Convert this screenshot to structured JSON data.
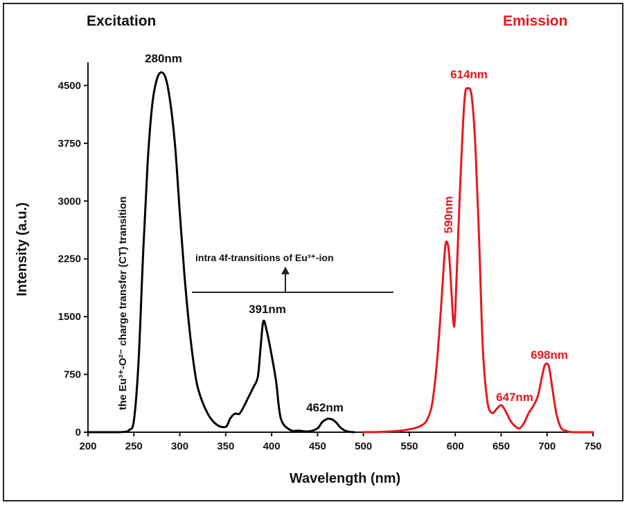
{
  "chart_data": {
    "type": "line",
    "titles": {
      "left": "Excitation",
      "right": "Emission"
    },
    "xlabel": "Wavelength (nm)",
    "ylabel": "Intensity (a.u.)",
    "xlim": [
      200,
      750
    ],
    "ylim": [
      0,
      4800
    ],
    "xticks": [
      200,
      250,
      300,
      350,
      400,
      450,
      500,
      550,
      600,
      650,
      700,
      750
    ],
    "yticks": [
      0,
      750,
      1500,
      2250,
      3000,
      3750,
      4500
    ],
    "grid": false,
    "colors": {
      "excitation": "#000000",
      "emission": "#e8171d"
    },
    "series": [
      {
        "id": "excitation",
        "x": [
          200,
          230,
          240,
          245,
          250,
          255,
          260,
          265,
          270,
          275,
          280,
          285,
          290,
          295,
          300,
          305,
          310,
          315,
          320,
          330,
          340,
          350,
          355,
          360,
          365,
          370,
          375,
          380,
          385,
          388,
          391,
          395,
          400,
          405,
          410,
          420,
          430,
          440,
          450,
          455,
          460,
          462,
          466,
          470,
          475,
          480,
          485,
          490
        ],
        "y": [
          0,
          0,
          5,
          30,
          150,
          900,
          2300,
          3500,
          4250,
          4580,
          4670,
          4580,
          4250,
          3700,
          2850,
          2050,
          1400,
          900,
          560,
          250,
          100,
          70,
          180,
          240,
          240,
          340,
          460,
          580,
          720,
          1100,
          1440,
          1300,
          1000,
          650,
          180,
          30,
          20,
          10,
          50,
          130,
          170,
          175,
          165,
          130,
          60,
          20,
          5,
          0
        ]
      },
      {
        "id": "emission",
        "x": [
          500,
          520,
          540,
          555,
          565,
          570,
          575,
          580,
          585,
          588,
          590,
          593,
          596,
          598,
          600,
          605,
          610,
          614,
          618,
          622,
          626,
          630,
          635,
          640,
          645,
          650,
          655,
          660,
          665,
          670,
          675,
          680,
          685,
          690,
          695,
          698,
          702,
          706,
          710,
          715,
          720,
          725,
          730,
          750
        ],
        "y": [
          0,
          5,
          20,
          50,
          100,
          180,
          380,
          900,
          1700,
          2250,
          2470,
          2350,
          1800,
          1420,
          1560,
          3100,
          4300,
          4460,
          4350,
          3700,
          2500,
          1100,
          400,
          250,
          300,
          350,
          270,
          150,
          80,
          50,
          120,
          250,
          340,
          470,
          750,
          880,
          850,
          550,
          250,
          60,
          20,
          5,
          0,
          0
        ]
      }
    ],
    "annotations": {
      "peak_280": "280nm",
      "peak_391": "391nm",
      "peak_462": "462nm",
      "peak_590": "590nm",
      "peak_614": "614nm",
      "peak_647": "647nm",
      "peak_698": "698nm",
      "intra_4f": "intra 4f-transitions of Eu³⁺-ion",
      "ct_transition": "the Eu³⁺-O²⁻ charge transfer (CT) transition"
    }
  }
}
